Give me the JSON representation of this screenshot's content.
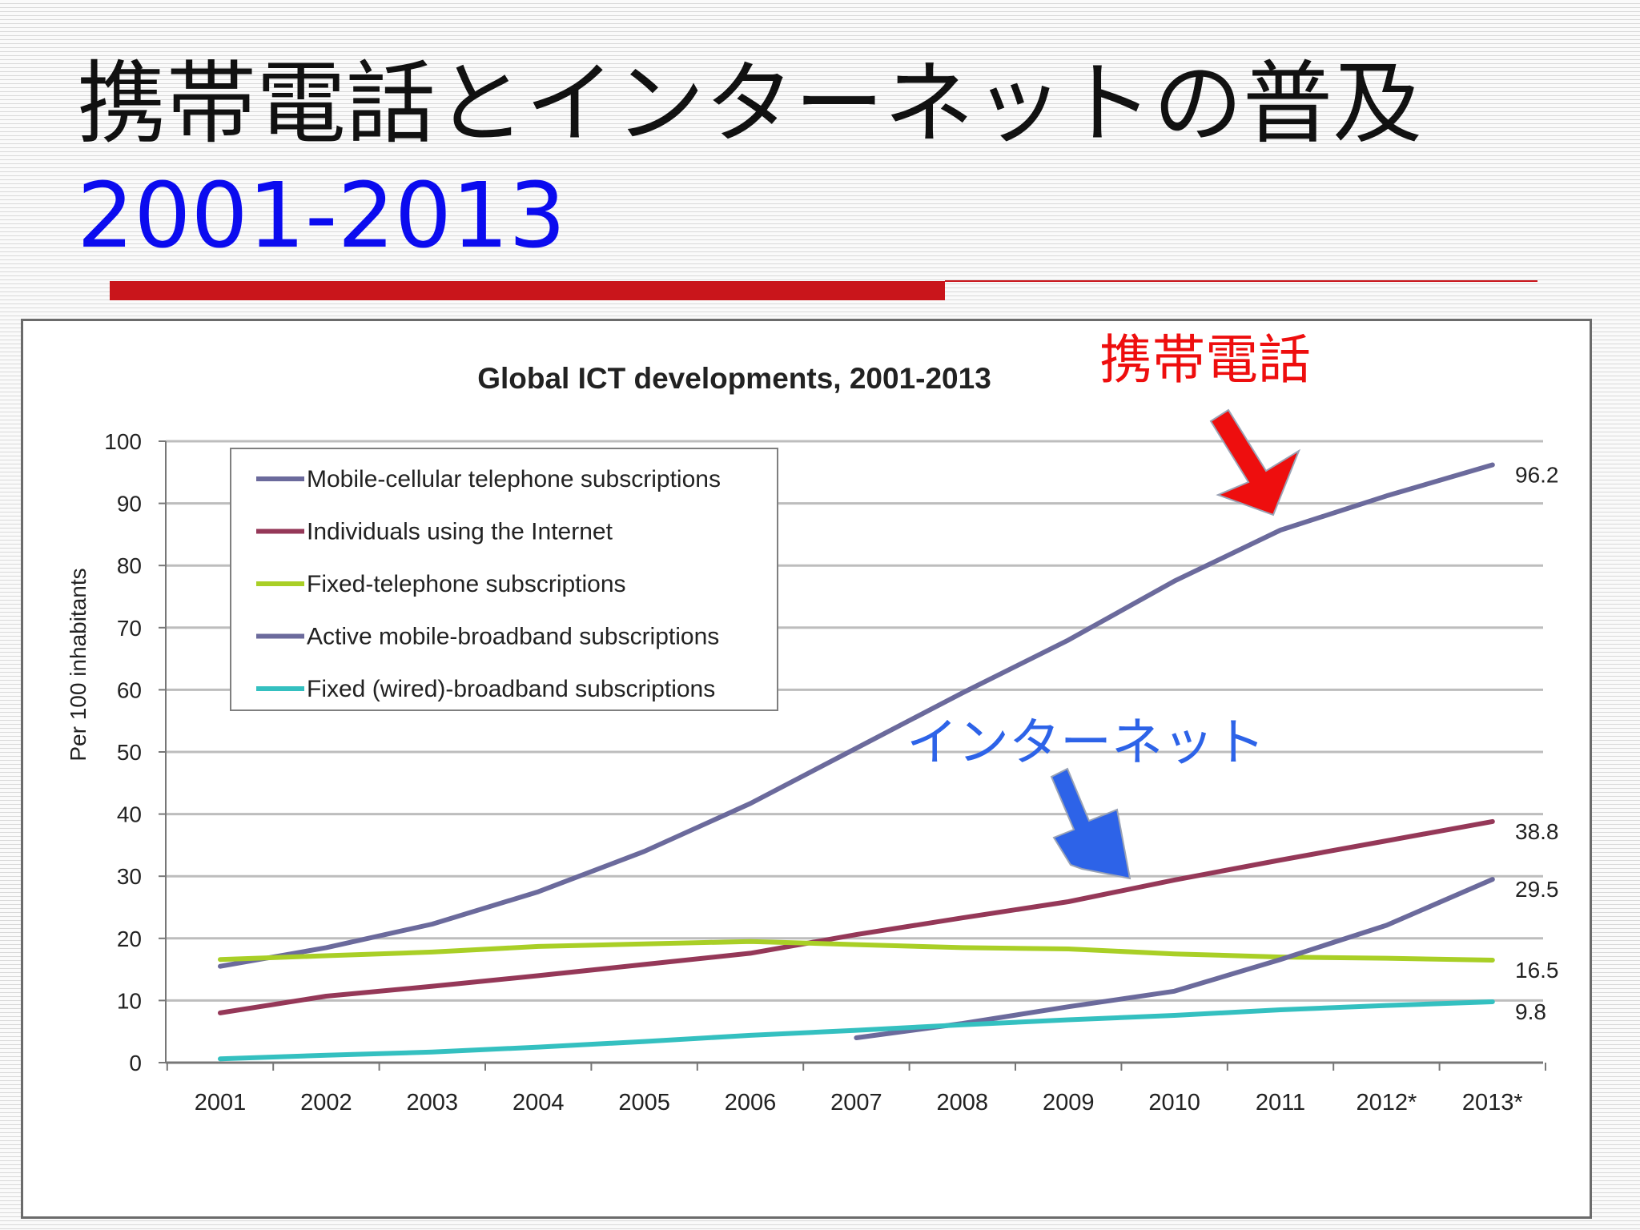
{
  "slide": {
    "title": "携帯電話とインターネットの普及",
    "subtitle": "2001-2013"
  },
  "annotations": {
    "mobile_label": "携帯電話",
    "mobile_color": "#ee0e0e",
    "internet_label": "インターネット",
    "internet_color": "#2d63e8"
  },
  "chart_data": {
    "type": "line",
    "title": "Global ICT developments, 2001-2013",
    "xlabel": "",
    "ylabel": "Per 100 inhabitants",
    "ylim": [
      0,
      100
    ],
    "yticks": [
      0,
      10,
      20,
      30,
      40,
      50,
      60,
      70,
      80,
      90,
      100
    ],
    "grid": true,
    "legend_position": "top-left",
    "categories": [
      "2001",
      "2002",
      "2003",
      "2004",
      "2005",
      "2006",
      "2007",
      "2008",
      "2009",
      "2010",
      "2011",
      "2012*",
      "2013*"
    ],
    "series": [
      {
        "name": "Mobile-cellular telephone subscriptions",
        "color": "#6b6a9c",
        "values": [
          15.5,
          18.5,
          22.3,
          27.5,
          34.0,
          41.7,
          50.6,
          59.5,
          68.0,
          77.5,
          85.7,
          91.2,
          96.2
        ],
        "end_label": "96.2"
      },
      {
        "name": "Individuals using the Internet",
        "color": "#953858",
        "values": [
          8.0,
          10.7,
          12.3,
          14.0,
          15.8,
          17.6,
          20.6,
          23.3,
          25.9,
          29.4,
          32.6,
          35.7,
          38.8
        ],
        "end_label": "38.8"
      },
      {
        "name": "Fixed-telephone subscriptions",
        "color": "#a9cf26",
        "values": [
          16.6,
          17.2,
          17.8,
          18.7,
          19.1,
          19.5,
          19.0,
          18.5,
          18.3,
          17.5,
          17.0,
          16.8,
          16.5
        ],
        "end_label": "16.5"
      },
      {
        "name": "Active mobile-broadband subscriptions",
        "color": "#6b6a9c",
        "values": [
          null,
          null,
          null,
          null,
          null,
          null,
          4.0,
          6.3,
          9.0,
          11.5,
          16.6,
          22.1,
          29.5
        ],
        "end_label": "29.5"
      },
      {
        "name": "Fixed (wired)-broadband subscriptions",
        "color": "#34c0c0",
        "values": [
          0.6,
          1.2,
          1.7,
          2.5,
          3.4,
          4.4,
          5.2,
          6.1,
          6.9,
          7.6,
          8.5,
          9.2,
          9.8
        ],
        "end_label": "9.8"
      }
    ]
  }
}
